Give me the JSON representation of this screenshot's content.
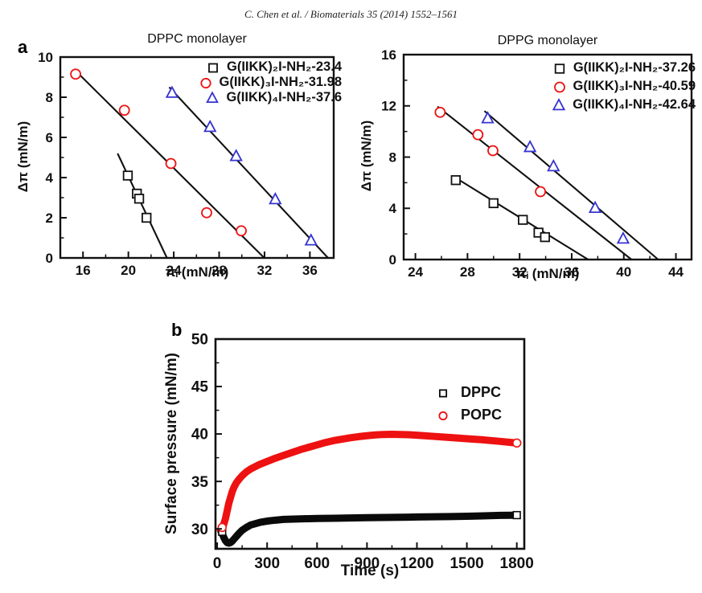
{
  "header": {
    "citation": "C. Chen et al. / Biomaterials 35 (2014) 1552–1561"
  },
  "panels": {
    "a": "a",
    "b": "b"
  },
  "colors": {
    "black": "#111111",
    "red": "#ee1111",
    "blue": "#3434cf"
  },
  "chart_data": [
    {
      "id": "dppc-monolayer",
      "type": "scatter",
      "title": "DPPC monolayer",
      "xlabel": "πᵢ (mN/m)",
      "ylabel": "Δπ (mN/m)",
      "xlim": [
        14.0,
        38.1
      ],
      "ylim": [
        0,
        10
      ],
      "xticks": [
        16,
        20,
        24,
        28,
        32,
        36
      ],
      "yticks": [
        0,
        2,
        4,
        6,
        8,
        10
      ],
      "grid": false,
      "legend_position": "top-right-inside",
      "series": [
        {
          "name": "G(IIKK)₂I-NH₂-23.4",
          "marker": "square",
          "color": "#111111",
          "points": [
            [
              19.95,
              4.1
            ],
            [
              20.75,
              3.2
            ],
            [
              20.95,
              2.95
            ],
            [
              21.6,
              2.0
            ]
          ],
          "fit_line": [
            [
              19.05,
              5.2
            ],
            [
              23.4,
              0
            ]
          ],
          "x_intercept": 23.4
        },
        {
          "name": "G(IIKK)₃I-NH₂-31.98",
          "marker": "circle",
          "color": "#ee1111",
          "points": [
            [
              15.35,
              9.15
            ],
            [
              19.65,
              7.35
            ],
            [
              23.75,
              4.7
            ],
            [
              26.9,
              2.25
            ],
            [
              29.95,
              1.35
            ]
          ],
          "fit_line": [
            [
              15.2,
              9.4
            ],
            [
              31.98,
              0
            ]
          ],
          "x_intercept": 31.98
        },
        {
          "name": "G(IIKK)₄I-NH₂-37.6",
          "marker": "triangle",
          "color": "#3434cf",
          "points": [
            [
              23.85,
              8.2
            ],
            [
              27.2,
              6.5
            ],
            [
              29.5,
              5.05
            ],
            [
              32.95,
              2.9
            ],
            [
              36.1,
              0.85
            ]
          ],
          "fit_line": [
            [
              23.6,
              8.5
            ],
            [
              37.6,
              0
            ]
          ],
          "x_intercept": 37.6
        }
      ]
    },
    {
      "id": "dppg-monolayer",
      "type": "scatter",
      "title": "DPPG monolayer",
      "xlabel": "πᵢ (mN/m)",
      "ylabel": "Δπ (mN/m)",
      "xlim": [
        23.1,
        45.2
      ],
      "ylim": [
        0,
        16
      ],
      "xticks": [
        24,
        28,
        32,
        36,
        40,
        44
      ],
      "yticks": [
        0,
        4,
        8,
        12,
        16
      ],
      "grid": false,
      "legend_position": "top-right-inside",
      "series": [
        {
          "name": "G(IIKK)₂I-NH₂-37.26",
          "marker": "square",
          "color": "#111111",
          "points": [
            [
              27.1,
              6.2
            ],
            [
              30.0,
              4.4
            ],
            [
              32.25,
              3.1
            ],
            [
              33.45,
              2.1
            ],
            [
              33.95,
              1.75
            ]
          ],
          "fit_line": [
            [
              26.9,
              6.5
            ],
            [
              37.26,
              0
            ]
          ],
          "x_intercept": 37.26
        },
        {
          "name": "G(IIKK)₃I-NH₂-40.59",
          "marker": "circle",
          "color": "#ee1111",
          "points": [
            [
              25.9,
              11.5
            ],
            [
              28.8,
              9.75
            ],
            [
              29.95,
              8.5
            ],
            [
              33.6,
              5.3
            ]
          ],
          "fit_line": [
            [
              25.7,
              11.95
            ],
            [
              40.59,
              0
            ]
          ],
          "x_intercept": 40.59
        },
        {
          "name": "G(IIKK)₄I-NH₂-42.64",
          "marker": "triangle",
          "color": "#3434cf",
          "points": [
            [
              29.55,
              11.0
            ],
            [
              32.8,
              8.75
            ],
            [
              34.6,
              7.25
            ],
            [
              37.8,
              4.0
            ],
            [
              39.95,
              1.6
            ]
          ],
          "fit_line": [
            [
              29.3,
              11.6
            ],
            [
              42.64,
              0
            ]
          ],
          "x_intercept": 42.64
        }
      ]
    },
    {
      "id": "adsorption-kinetics",
      "type": "line",
      "title": "",
      "xlabel": "Time (s)",
      "ylabel": "Surface pressure (mN/m)",
      "xlim": [
        -10,
        1845
      ],
      "ylim": [
        27.9,
        50
      ],
      "xticks": [
        0,
        300,
        600,
        900,
        1200,
        1500,
        1800
      ],
      "yticks": [
        30,
        35,
        40,
        45,
        50
      ],
      "grid": false,
      "legend_position": "right-inside",
      "series": [
        {
          "name": "DPPC",
          "marker": "square",
          "color": "#0a0a0a",
          "line_width": 9,
          "points": [
            [
              20,
              29.85
            ],
            [
              30,
              29.5
            ],
            [
              40,
              29.1
            ],
            [
              50,
              28.75
            ],
            [
              60,
              28.55
            ],
            [
              70,
              28.5
            ],
            [
              80,
              28.55
            ],
            [
              90,
              28.7
            ],
            [
              100,
              28.9
            ],
            [
              115,
              29.2
            ],
            [
              130,
              29.5
            ],
            [
              150,
              29.85
            ],
            [
              175,
              30.15
            ],
            [
              200,
              30.4
            ],
            [
              230,
              30.55
            ],
            [
              260,
              30.7
            ],
            [
              300,
              30.82
            ],
            [
              350,
              30.92
            ],
            [
              400,
              31.0
            ],
            [
              500,
              31.05
            ],
            [
              600,
              31.1
            ],
            [
              700,
              31.12
            ],
            [
              800,
              31.15
            ],
            [
              900,
              31.18
            ],
            [
              1000,
              31.2
            ],
            [
              1100,
              31.22
            ],
            [
              1200,
              31.25
            ],
            [
              1300,
              31.28
            ],
            [
              1400,
              31.3
            ],
            [
              1500,
              31.33
            ],
            [
              1600,
              31.37
            ],
            [
              1700,
              31.42
            ],
            [
              1800,
              31.45
            ]
          ],
          "endpoint_markers": [
            [
              30,
              29.7
            ],
            [
              1800,
              31.45
            ]
          ]
        },
        {
          "name": "POPC",
          "marker": "circle",
          "color": "#ee1111",
          "line_width": 9,
          "points": [
            [
              20,
              29.9
            ],
            [
              30,
              30.15
            ],
            [
              40,
              30.5
            ],
            [
              50,
              31.1
            ],
            [
              60,
              31.9
            ],
            [
              70,
              32.7
            ],
            [
              80,
              33.3
            ],
            [
              90,
              33.9
            ],
            [
              100,
              34.35
            ],
            [
              115,
              34.85
            ],
            [
              130,
              35.2
            ],
            [
              150,
              35.6
            ],
            [
              175,
              36.0
            ],
            [
              200,
              36.3
            ],
            [
              250,
              36.75
            ],
            [
              300,
              37.1
            ],
            [
              350,
              37.45
            ],
            [
              400,
              37.75
            ],
            [
              450,
              38.05
            ],
            [
              500,
              38.35
            ],
            [
              550,
              38.6
            ],
            [
              600,
              38.85
            ],
            [
              650,
              39.1
            ],
            [
              700,
              39.3
            ],
            [
              750,
              39.45
            ],
            [
              800,
              39.6
            ],
            [
              850,
              39.72
            ],
            [
              900,
              39.82
            ],
            [
              950,
              39.9
            ],
            [
              1000,
              39.95
            ],
            [
              1050,
              39.97
            ],
            [
              1100,
              39.95
            ],
            [
              1150,
              39.92
            ],
            [
              1200,
              39.87
            ],
            [
              1300,
              39.75
            ],
            [
              1400,
              39.63
            ],
            [
              1500,
              39.5
            ],
            [
              1600,
              39.38
            ],
            [
              1700,
              39.22
            ],
            [
              1800,
              39.05
            ]
          ],
          "endpoint_markers": [
            [
              30,
              30.15
            ],
            [
              1800,
              39.05
            ]
          ]
        }
      ]
    }
  ]
}
